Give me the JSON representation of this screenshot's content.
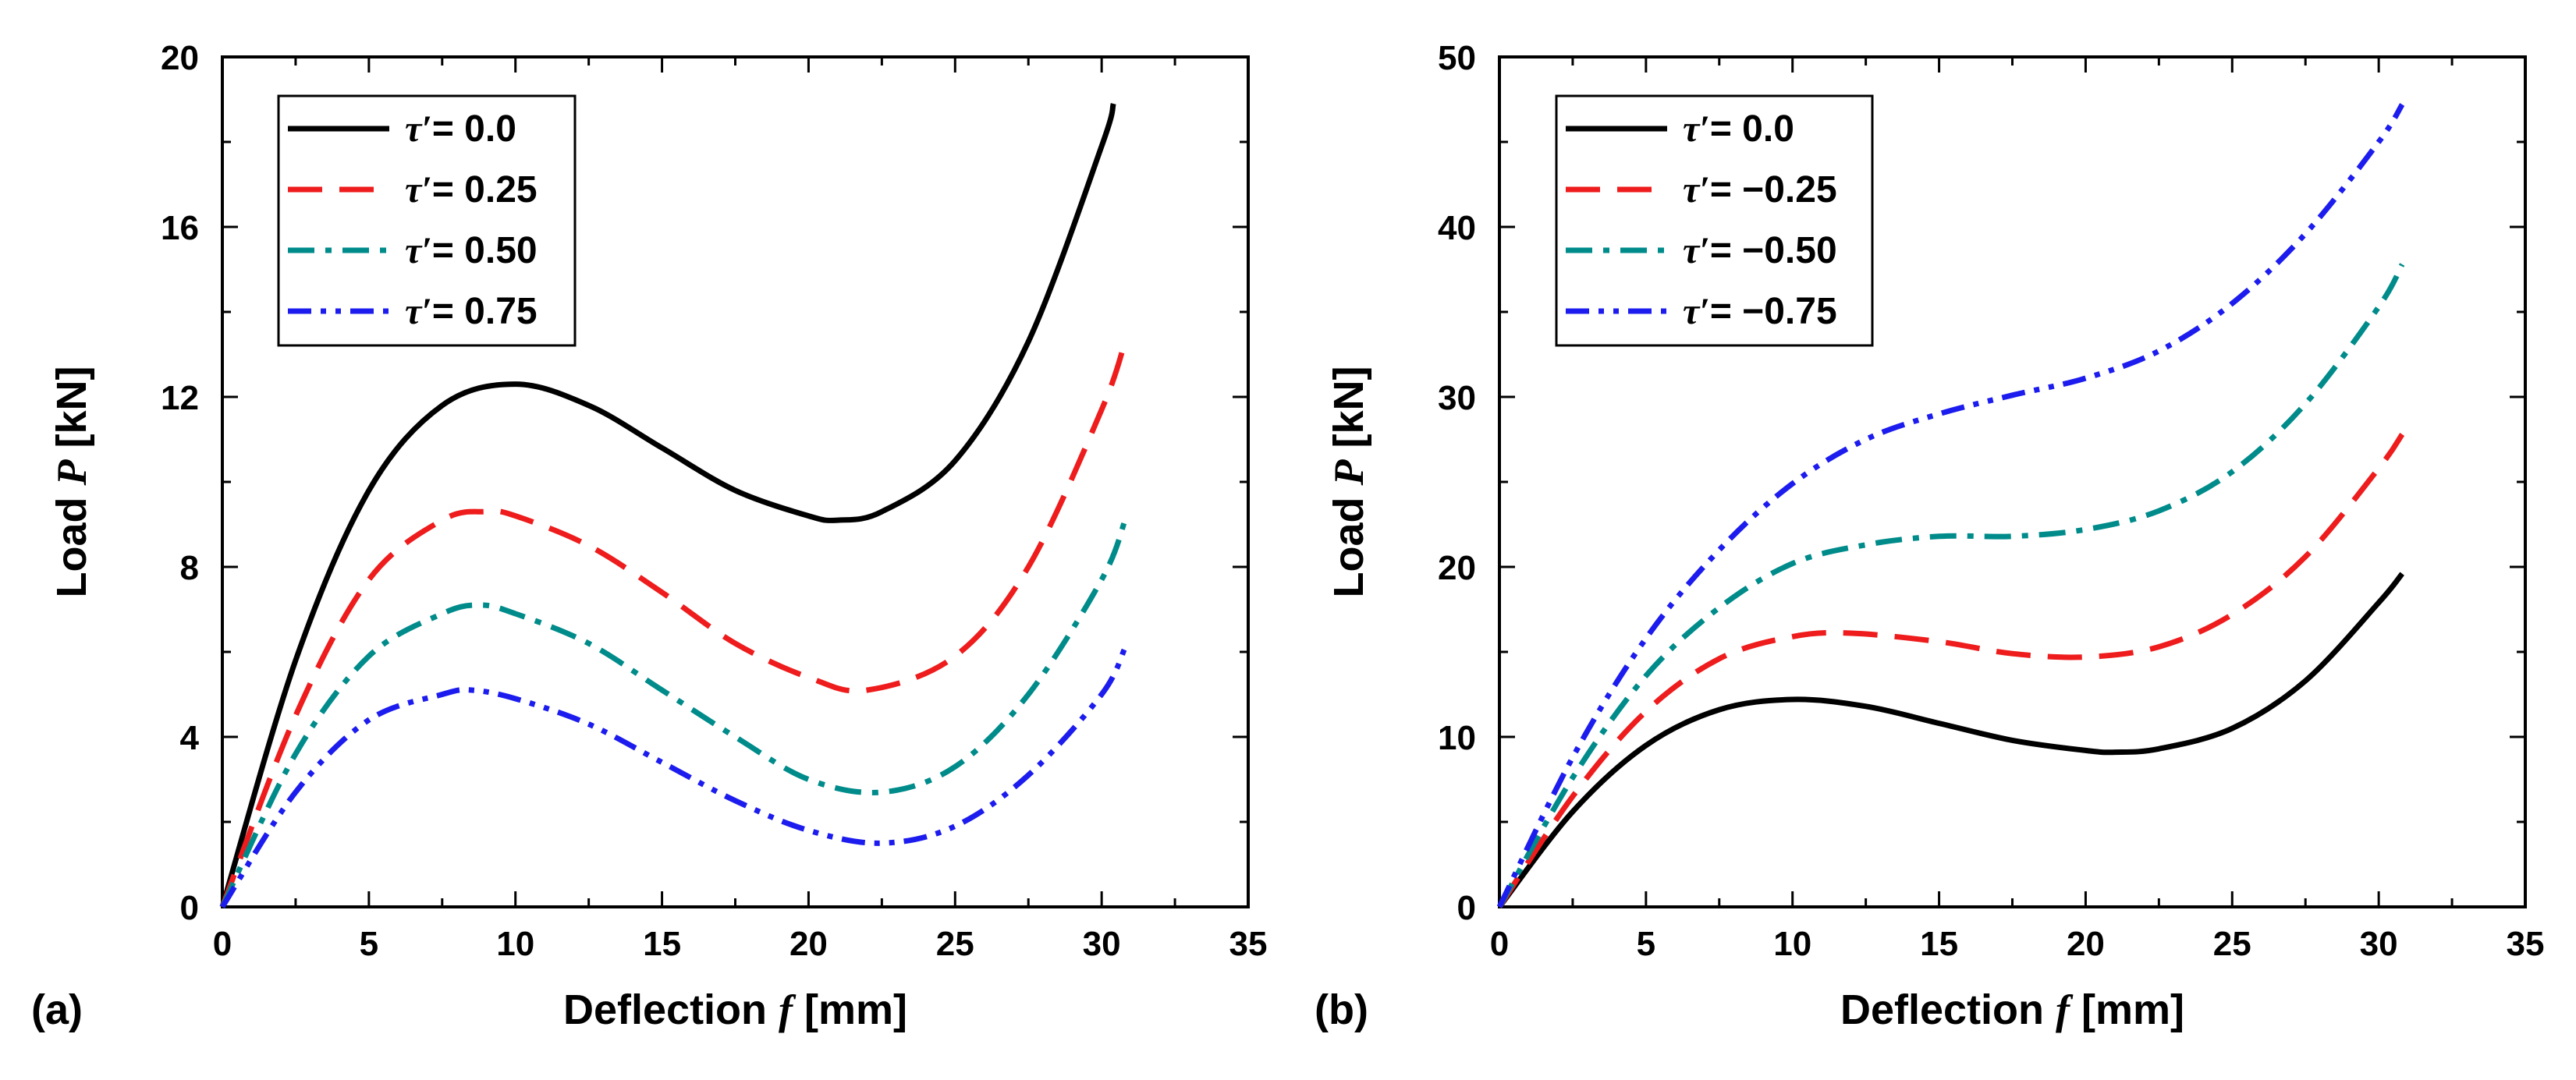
{
  "chart_data": [
    {
      "type": "line",
      "panel_label": "(a)",
      "xlabel": "Deflection",
      "xlabel_symbol": "f",
      "xlabel_unit": "[mm]",
      "ylabel": "Load",
      "ylabel_symbol": "P",
      "ylabel_unit": "[kN]",
      "xlim": [
        0,
        35
      ],
      "ylim": [
        0,
        20
      ],
      "xticks": [
        0,
        5,
        10,
        15,
        20,
        25,
        30,
        35
      ],
      "yticks": [
        0,
        4,
        8,
        12,
        16,
        20
      ],
      "legend_position": "top-left",
      "series": [
        {
          "name": "τ′= 0.0",
          "symbol": "τ′",
          "value_label": "= 0.0",
          "color": "#000000",
          "style": "solid",
          "x": [
            0,
            2.5,
            5,
            7.5,
            10,
            12.5,
            15,
            17.5,
            20,
            21,
            22.5,
            25,
            27.5,
            30,
            30.4
          ],
          "y": [
            0,
            5.8,
            9.8,
            11.8,
            12.3,
            11.8,
            10.8,
            9.8,
            9.2,
            9.1,
            9.3,
            10.5,
            13.3,
            17.9,
            18.9
          ]
        },
        {
          "name": "τ′= 0.25",
          "symbol": "τ′",
          "value_label": "= 0.25",
          "color": "#ee1c1c",
          "style": "dash",
          "x": [
            0,
            2.5,
            5,
            7.5,
            9,
            10,
            12.5,
            15,
            17.5,
            20,
            22,
            25,
            27.5,
            30,
            30.8
          ],
          "y": [
            0,
            4.5,
            7.7,
            9.1,
            9.3,
            9.2,
            8.5,
            7.4,
            6.2,
            5.4,
            5.1,
            5.9,
            8.0,
            11.7,
            13.3
          ]
        },
        {
          "name": "τ′= 0.50",
          "symbol": "τ′",
          "value_label": "= 0.50",
          "color": "#008b8b",
          "style": "dashdot",
          "x": [
            0,
            2.5,
            5,
            7.5,
            8.8,
            10,
            12.5,
            15,
            17.5,
            20,
            22.5,
            25,
            27.5,
            30,
            30.8
          ],
          "y": [
            0,
            3.6,
            5.9,
            6.9,
            7.1,
            6.9,
            6.2,
            5.1,
            4.0,
            3.0,
            2.7,
            3.3,
            5.0,
            7.7,
            9.1
          ]
        },
        {
          "name": "τ′= 0.75",
          "symbol": "τ′",
          "value_label": "= 0.75",
          "color": "#1c1cee",
          "style": "dashdotdot",
          "x": [
            0,
            2.5,
            5,
            7.5,
            8.5,
            10,
            12.5,
            15,
            17.5,
            20,
            22.5,
            25,
            27.5,
            30,
            30.8
          ],
          "y": [
            0,
            2.7,
            4.4,
            5.0,
            5.1,
            4.9,
            4.3,
            3.4,
            2.5,
            1.8,
            1.5,
            1.9,
            3.1,
            5.0,
            6.1
          ]
        }
      ]
    },
    {
      "type": "line",
      "panel_label": "(b)",
      "xlabel": "Deflection",
      "xlabel_symbol": "f",
      "xlabel_unit": "[mm]",
      "ylabel": "Load",
      "ylabel_symbol": "P",
      "ylabel_unit": "[kN]",
      "xlim": [
        0,
        35
      ],
      "ylim": [
        0,
        50
      ],
      "xticks": [
        0,
        5,
        10,
        15,
        20,
        25,
        30,
        35
      ],
      "yticks": [
        0,
        10,
        20,
        30,
        40,
        50
      ],
      "legend_position": "top-left",
      "series": [
        {
          "name": "τ′= 0.0",
          "symbol": "τ′",
          "value_label": "= 0.0",
          "color": "#000000",
          "style": "solid",
          "x": [
            0,
            2.5,
            5,
            7.5,
            10,
            12.5,
            15,
            17.5,
            20,
            21,
            22.5,
            25,
            27.5,
            30,
            30.8
          ],
          "y": [
            0,
            5.6,
            9.5,
            11.6,
            12.2,
            11.8,
            10.8,
            9.8,
            9.2,
            9.1,
            9.3,
            10.5,
            13.3,
            17.9,
            19.6
          ]
        },
        {
          "name": "τ′= −0.25",
          "symbol": "τ′",
          "value_label": "= −0.25",
          "color": "#ee1c1c",
          "style": "dash",
          "x": [
            0,
            2.5,
            5,
            7.5,
            10,
            12,
            15,
            17.5,
            20,
            22.5,
            25,
            27.5,
            30,
            30.8
          ],
          "y": [
            0,
            6.5,
            11.5,
            14.6,
            15.9,
            16.1,
            15.6,
            14.9,
            14.7,
            15.3,
            17.2,
            20.6,
            25.8,
            27.8
          ]
        },
        {
          "name": "τ′= −0.50",
          "symbol": "τ′",
          "value_label": "= −0.50",
          "color": "#008b8b",
          "style": "dashdot",
          "x": [
            0,
            2.5,
            5,
            7.5,
            10,
            12.5,
            15,
            17.5,
            20,
            22.5,
            25,
            27.5,
            30,
            30.8
          ],
          "y": [
            0,
            7.6,
            13.6,
            17.6,
            20.2,
            21.3,
            21.8,
            21.8,
            22.2,
            23.3,
            25.6,
            29.6,
            35.3,
            37.8
          ]
        },
        {
          "name": "τ′= −0.75",
          "symbol": "τ′",
          "value_label": "= −0.75",
          "color": "#1c1cee",
          "style": "dashdotdot",
          "x": [
            0,
            2.5,
            5,
            7.5,
            10,
            12.5,
            15,
            17.5,
            20,
            22.5,
            25,
            27.5,
            30,
            30.8
          ],
          "y": [
            0,
            8.8,
            15.8,
            21.0,
            24.9,
            27.5,
            29.0,
            30.1,
            31.1,
            32.7,
            35.5,
            39.6,
            45.0,
            47.2
          ]
        }
      ]
    }
  ]
}
